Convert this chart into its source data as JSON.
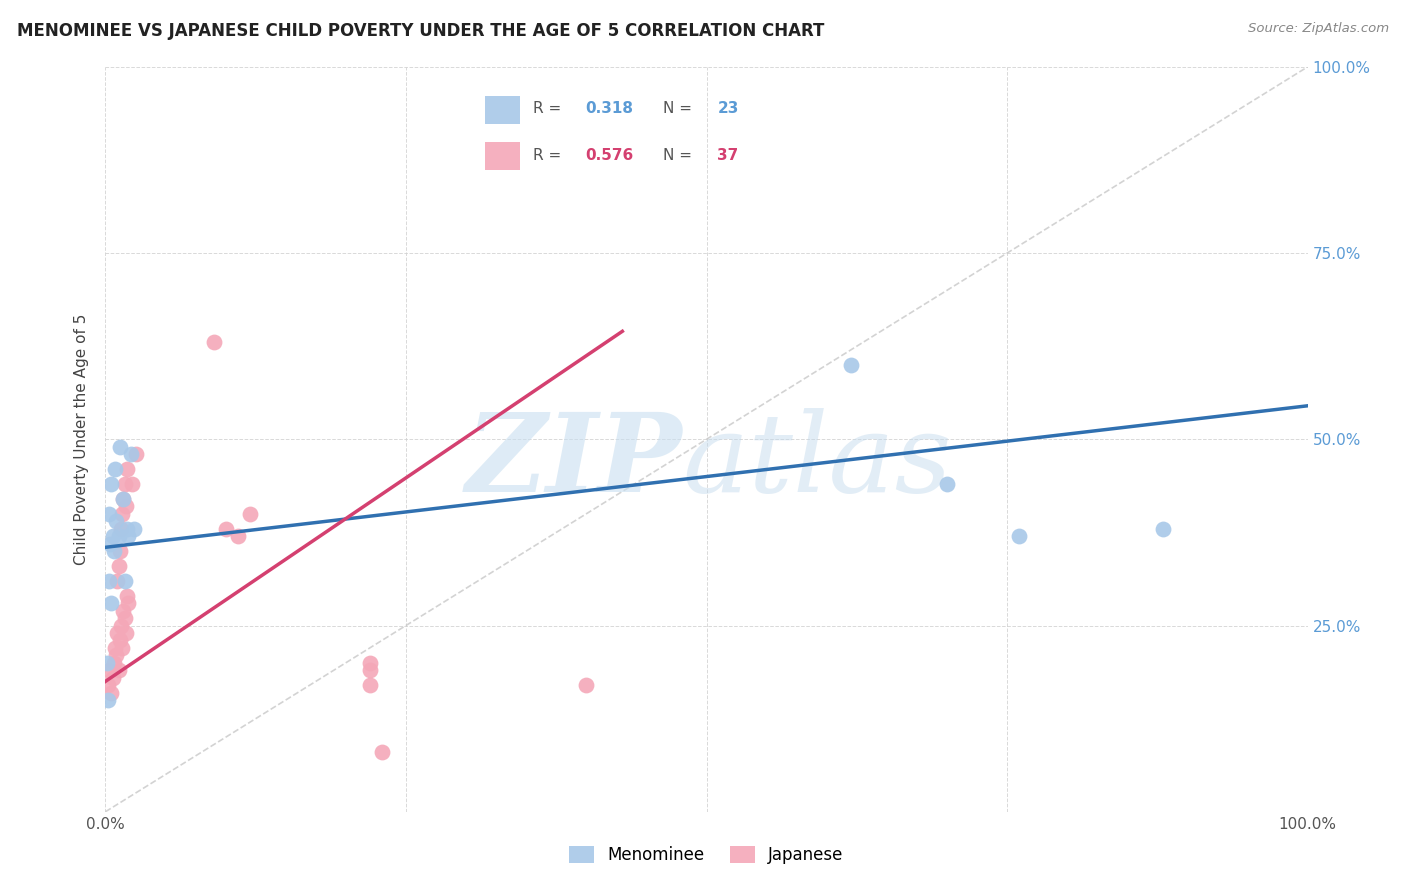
{
  "title": "MENOMINEE VS JAPANESE CHILD POVERTY UNDER THE AGE OF 5 CORRELATION CHART",
  "source": "Source: ZipAtlas.com",
  "ylabel": "Child Poverty Under the Age of 5",
  "xlim": [
    0,
    1.0
  ],
  "ylim": [
    0,
    1.0
  ],
  "xticks": [
    0.0,
    0.25,
    0.5,
    0.75,
    1.0
  ],
  "yticks": [
    0.0,
    0.25,
    0.5,
    0.75,
    1.0
  ],
  "xticklabels": [
    "0.0%",
    "",
    "",
    "",
    "100.0%"
  ],
  "yticklabels_right": [
    "",
    "25.0%",
    "50.0%",
    "75.0%",
    "100.0%"
  ],
  "menominee_color": "#a8c8e8",
  "japanese_color": "#f4a8b8",
  "menominee_R": 0.318,
  "menominee_N": 23,
  "japanese_R": 0.576,
  "japanese_N": 37,
  "menominee_line_color": "#3070b0",
  "japanese_line_color": "#d44070",
  "diagonal_color": "#c8c8c8",
  "menominee_x": [
    0.005,
    0.012,
    0.008,
    0.003,
    0.006,
    0.015,
    0.009,
    0.004,
    0.018,
    0.007,
    0.021,
    0.024,
    0.019,
    0.003,
    0.001,
    0.002,
    0.005,
    0.011,
    0.016,
    0.62,
    0.7,
    0.76,
    0.88
  ],
  "menominee_y": [
    0.44,
    0.49,
    0.46,
    0.4,
    0.37,
    0.42,
    0.39,
    0.36,
    0.38,
    0.35,
    0.48,
    0.38,
    0.37,
    0.31,
    0.2,
    0.15,
    0.28,
    0.37,
    0.31,
    0.6,
    0.44,
    0.37,
    0.38
  ],
  "japanese_x": [
    0.002,
    0.003,
    0.005,
    0.006,
    0.007,
    0.008,
    0.009,
    0.01,
    0.011,
    0.012,
    0.013,
    0.014,
    0.015,
    0.016,
    0.017,
    0.018,
    0.019,
    0.01,
    0.011,
    0.012,
    0.013,
    0.014,
    0.015,
    0.016,
    0.017,
    0.018,
    0.022,
    0.025,
    0.09,
    0.1,
    0.11,
    0.12,
    0.22,
    0.22,
    0.22,
    0.23,
    0.4
  ],
  "japanese_y": [
    0.17,
    0.19,
    0.16,
    0.18,
    0.2,
    0.22,
    0.21,
    0.24,
    0.19,
    0.23,
    0.25,
    0.22,
    0.27,
    0.26,
    0.24,
    0.29,
    0.28,
    0.31,
    0.33,
    0.35,
    0.38,
    0.4,
    0.42,
    0.44,
    0.41,
    0.46,
    0.44,
    0.48,
    0.63,
    0.38,
    0.37,
    0.4,
    0.2,
    0.17,
    0.19,
    0.08,
    0.17
  ],
  "menominee_line_x0": 0.0,
  "menominee_line_y0": 0.355,
  "menominee_line_x1": 1.0,
  "menominee_line_y1": 0.545,
  "japanese_line_x0": 0.0,
  "japanese_line_y0": 0.175,
  "japanese_line_x1": 0.43,
  "japanese_line_y1": 0.645
}
